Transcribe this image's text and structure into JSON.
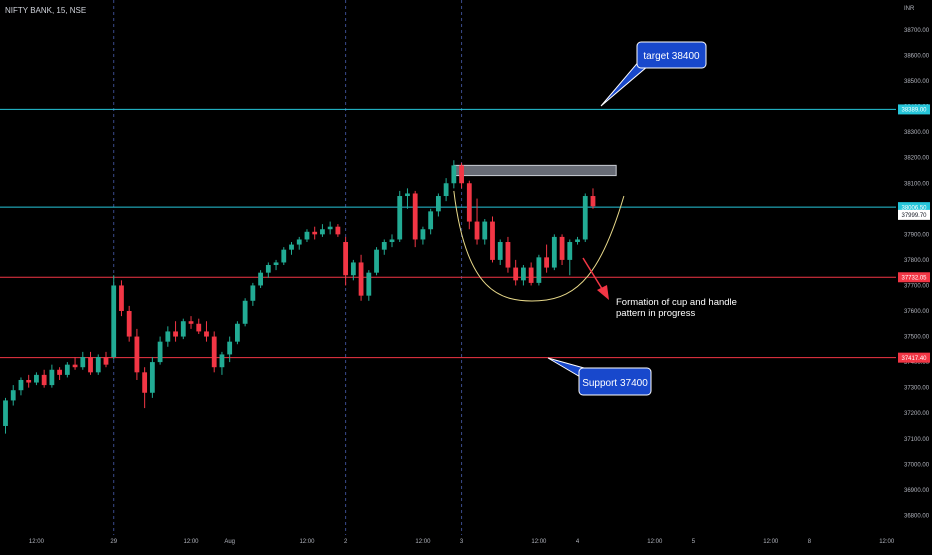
{
  "chart_data": {
    "type": "candlestick",
    "symbol_label": "NIFTY BANK, 15, NSE",
    "currency_label": "INR",
    "ylim": [
      36800,
      38800
    ],
    "y_ticks": [
      {
        "value": 38700,
        "label": "38700.00"
      },
      {
        "value": 38600,
        "label": "38600.00"
      },
      {
        "value": 38500,
        "label": "38500.00"
      },
      {
        "value": 38400,
        "label": "38400.00"
      },
      {
        "value": 38300,
        "label": "38300.00"
      },
      {
        "value": 38200,
        "label": "38200.00"
      },
      {
        "value": 38100,
        "label": "38100.00"
      },
      {
        "value": 38000,
        "label": "38000.00"
      },
      {
        "value": 37900,
        "label": "37900.00"
      },
      {
        "value": 37800,
        "label": "37800.00"
      },
      {
        "value": 37700,
        "label": "37700.00"
      },
      {
        "value": 37600,
        "label": "37600.00"
      },
      {
        "value": 37500,
        "label": "37500.00"
      },
      {
        "value": 37400,
        "label": "37400.00"
      },
      {
        "value": 37300,
        "label": "37300.00"
      },
      {
        "value": 37200,
        "label": "37200.00"
      },
      {
        "value": 37100,
        "label": "37100.00"
      },
      {
        "value": 37000,
        "label": "37000.00"
      },
      {
        "value": 36900,
        "label": "36900.00"
      },
      {
        "value": 36800,
        "label": "36800.00"
      }
    ],
    "x_ticks": [
      {
        "bar": 4,
        "label": "12:00"
      },
      {
        "bar": 14,
        "label": "29"
      },
      {
        "bar": 24,
        "label": "12:00"
      },
      {
        "bar": 29,
        "label": "Aug"
      },
      {
        "bar": 39,
        "label": "12:00"
      },
      {
        "bar": 44,
        "label": "2"
      },
      {
        "bar": 54,
        "label": "12:00"
      },
      {
        "bar": 59,
        "label": "3"
      },
      {
        "bar": 69,
        "label": "12:00"
      },
      {
        "bar": 74,
        "label": "4"
      },
      {
        "bar": 84,
        "label": "12:00"
      },
      {
        "bar": 89,
        "label": "5"
      },
      {
        "bar": 99,
        "label": "12:00"
      },
      {
        "bar": 104,
        "label": "8"
      },
      {
        "bar": 114,
        "label": "12:00"
      }
    ],
    "session_dividers_at_bar": [
      14,
      44,
      59
    ],
    "candles": [
      [
        37150,
        37260,
        37120,
        37250
      ],
      [
        37250,
        37310,
        37230,
        37290
      ],
      [
        37290,
        37340,
        37270,
        37330
      ],
      [
        37330,
        37350,
        37300,
        37320
      ],
      [
        37320,
        37360,
        37310,
        37350
      ],
      [
        37350,
        37370,
        37300,
        37310
      ],
      [
        37310,
        37390,
        37300,
        37370
      ],
      [
        37370,
        37380,
        37330,
        37350
      ],
      [
        37350,
        37400,
        37340,
        37390
      ],
      [
        37390,
        37420,
        37370,
        37380
      ],
      [
        37380,
        37440,
        37370,
        37420
      ],
      [
        37420,
        37440,
        37350,
        37360
      ],
      [
        37360,
        37430,
        37350,
        37420
      ],
      [
        37420,
        37440,
        37380,
        37390
      ],
      [
        37420,
        37740,
        37410,
        37700
      ],
      [
        37700,
        37720,
        37580,
        37600
      ],
      [
        37600,
        37620,
        37480,
        37500
      ],
      [
        37500,
        37530,
        37330,
        37360
      ],
      [
        37360,
        37380,
        37220,
        37280
      ],
      [
        37280,
        37420,
        37260,
        37400
      ],
      [
        37400,
        37500,
        37390,
        37480
      ],
      [
        37480,
        37540,
        37460,
        37520
      ],
      [
        37520,
        37560,
        37480,
        37500
      ],
      [
        37500,
        37570,
        37490,
        37560
      ],
      [
        37560,
        37580,
        37530,
        37550
      ],
      [
        37550,
        37570,
        37510,
        37520
      ],
      [
        37520,
        37560,
        37480,
        37500
      ],
      [
        37500,
        37520,
        37360,
        37380
      ],
      [
        37380,
        37440,
        37350,
        37430
      ],
      [
        37430,
        37500,
        37400,
        37480
      ],
      [
        37480,
        37560,
        37470,
        37550
      ],
      [
        37550,
        37650,
        37540,
        37640
      ],
      [
        37640,
        37710,
        37620,
        37700
      ],
      [
        37700,
        37760,
        37690,
        37750
      ],
      [
        37750,
        37790,
        37730,
        37780
      ],
      [
        37780,
        37800,
        37760,
        37790
      ],
      [
        37790,
        37850,
        37780,
        37840
      ],
      [
        37840,
        37870,
        37820,
        37860
      ],
      [
        37860,
        37890,
        37840,
        37880
      ],
      [
        37880,
        37920,
        37870,
        37910
      ],
      [
        37910,
        37930,
        37880,
        37900
      ],
      [
        37900,
        37940,
        37890,
        37920
      ],
      [
        37920,
        37950,
        37900,
        37930
      ],
      [
        37930,
        37940,
        37890,
        37900
      ],
      [
        37870,
        37890,
        37700,
        37740
      ],
      [
        37740,
        37800,
        37720,
        37790
      ],
      [
        37790,
        37820,
        37640,
        37660
      ],
      [
        37660,
        37760,
        37640,
        37750
      ],
      [
        37750,
        37850,
        37740,
        37840
      ],
      [
        37840,
        37880,
        37820,
        37870
      ],
      [
        37870,
        37900,
        37850,
        37880
      ],
      [
        37880,
        38070,
        37870,
        38050
      ],
      [
        38050,
        38080,
        38000,
        38060
      ],
      [
        38060,
        38070,
        37850,
        37880
      ],
      [
        37880,
        37930,
        37860,
        37920
      ],
      [
        37920,
        38000,
        37900,
        37990
      ],
      [
        37990,
        38060,
        37970,
        38050
      ],
      [
        38050,
        38120,
        38030,
        38100
      ],
      [
        38100,
        38190,
        38080,
        38170
      ],
      [
        38170,
        38180,
        38080,
        38100
      ],
      [
        38100,
        38110,
        37920,
        37950
      ],
      [
        37950,
        38040,
        37860,
        37880
      ],
      [
        37880,
        37960,
        37860,
        37950
      ],
      [
        37950,
        37970,
        37790,
        37800
      ],
      [
        37800,
        37880,
        37780,
        37870
      ],
      [
        37870,
        37890,
        37750,
        37770
      ],
      [
        37770,
        37800,
        37700,
        37720
      ],
      [
        37720,
        37780,
        37700,
        37770
      ],
      [
        37770,
        37790,
        37700,
        37710
      ],
      [
        37710,
        37820,
        37700,
        37810
      ],
      [
        37810,
        37860,
        37750,
        37770
      ],
      [
        37770,
        37900,
        37760,
        37890
      ],
      [
        37890,
        37900,
        37780,
        37800
      ],
      [
        37800,
        37880,
        37740,
        37870
      ],
      [
        37870,
        37890,
        37860,
        37880
      ],
      [
        37880,
        38060,
        37870,
        38050
      ],
      [
        38050,
        38080,
        38000,
        38010
      ]
    ],
    "horizontal_lines": [
      {
        "value": 38389.0,
        "label": "38389.00",
        "color": "#26c6da"
      },
      {
        "value": 38006.5,
        "label": "38006.50",
        "color": "#26c6da"
      },
      {
        "value": 37732.05,
        "label": "37732.05",
        "color": "#f23645"
      },
      {
        "value": 37417.4,
        "label": "37417.40",
        "color": "#f23645"
      }
    ],
    "last_price": {
      "value": 37999.7,
      "label": "37999.70"
    },
    "resistance_box": {
      "bar_from": 58,
      "bar_to": 79,
      "low": 38130,
      "high": 38170
    },
    "cup_curve": {
      "start": [
        58,
        38070
      ],
      "bottom": [
        69,
        37640
      ],
      "end": [
        80,
        38050
      ]
    },
    "annotations": [
      {
        "kind": "callout",
        "text": "target 38400",
        "pointer": "left-down"
      },
      {
        "kind": "callout",
        "text": "Support 37400",
        "pointer": "up-left"
      },
      {
        "kind": "text",
        "lines": [
          "Formation of cup and handle",
          "pattern in progress"
        ]
      }
    ],
    "colors": {
      "up": "#22ab94",
      "down": "#f23645",
      "callout_fill": "#1848cc",
      "callout_border": "#ffffff",
      "arrow": "#f23645",
      "cup": "#e8d98a",
      "divider": "#3a4b8c",
      "axis_text": "#b2b5be"
    }
  }
}
